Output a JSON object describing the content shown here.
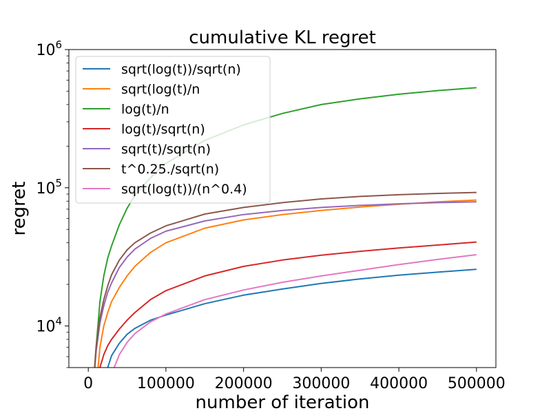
{
  "chart_data": {
    "type": "line",
    "title": "cumulative KL regret",
    "xlabel": "number of iteration",
    "ylabel": "regret",
    "xlim": [
      -25000,
      525000
    ],
    "ylim": [
      5000,
      1000000
    ],
    "y_scale": "log",
    "grid": false,
    "legend_position": "upper-left",
    "x_ticks": [
      {
        "value": 0,
        "label": "0"
      },
      {
        "value": 100000,
        "label": "100000"
      },
      {
        "value": 200000,
        "label": "200000"
      },
      {
        "value": 300000,
        "label": "300000"
      },
      {
        "value": 400000,
        "label": "400000"
      },
      {
        "value": 500000,
        "label": "500000"
      }
    ],
    "y_ticks": [
      {
        "value": 10000,
        "base": "10",
        "exp": "4"
      },
      {
        "value": 100000,
        "base": "10",
        "exp": "5"
      },
      {
        "value": 1000000,
        "base": "10",
        "exp": "6"
      }
    ],
    "x": [
      7000,
      10000,
      15000,
      20000,
      25000,
      30000,
      40000,
      50000,
      60000,
      80000,
      100000,
      150000,
      200000,
      250000,
      300000,
      350000,
      400000,
      450000,
      500000
    ],
    "series": [
      {
        "name": "sqrt(log(t))/sqrt(n)",
        "color": "#1f77b4",
        "values": [
          null,
          null,
          null,
          3000,
          5000,
          6100,
          7500,
          8700,
          9600,
          11000,
          12000,
          14500,
          16700,
          18500,
          20300,
          21900,
          23300,
          24500,
          25700
        ]
      },
      {
        "name": "sqrt(log(t)/n",
        "color": "#ff7f0e",
        "values": [
          null,
          3500,
          7000,
          10000,
          12500,
          15000,
          19000,
          23000,
          27000,
          34000,
          40000,
          51000,
          58500,
          64000,
          68500,
          72500,
          76000,
          79000,
          81500
        ]
      },
      {
        "name": "log(t)/n",
        "color": "#2ca02c",
        "values": [
          4000,
          7000,
          15000,
          23000,
          31000,
          38000,
          54000,
          71000,
          88000,
          118000,
          150000,
          220000,
          285000,
          345000,
          400000,
          440000,
          475000,
          505000,
          530000
        ]
      },
      {
        "name": "log(t)/sqrt(n)",
        "color": "#d62728",
        "values": [
          null,
          3500,
          5000,
          6200,
          7200,
          8000,
          9500,
          11000,
          12500,
          15500,
          18000,
          23000,
          27000,
          30000,
          32500,
          34700,
          36700,
          38500,
          40500
        ]
      },
      {
        "name": "sqrt(t)/sqrt(n)",
        "color": "#9467bd",
        "values": [
          4000,
          6500,
          10500,
          14000,
          17500,
          20500,
          26500,
          31500,
          36000,
          43000,
          48500,
          57500,
          64000,
          68500,
          72000,
          74500,
          76500,
          78000,
          79000
        ]
      },
      {
        "name": "t^0.25./sqrt(n)",
        "color": "#8c564b",
        "values": [
          4000,
          7000,
          11500,
          15500,
          19500,
          23500,
          30000,
          35500,
          40000,
          47000,
          53000,
          64500,
          72000,
          78000,
          83000,
          86500,
          89000,
          91000,
          92500
        ]
      },
      {
        "name": "sqrt(log(t))/(n^0.4)",
        "color": "#e377c2",
        "values": [
          null,
          null,
          null,
          null,
          null,
          4500,
          6200,
          7600,
          8800,
          10700,
          12200,
          15500,
          18200,
          20700,
          23000,
          25300,
          27800,
          30300,
          32800
        ]
      }
    ]
  }
}
